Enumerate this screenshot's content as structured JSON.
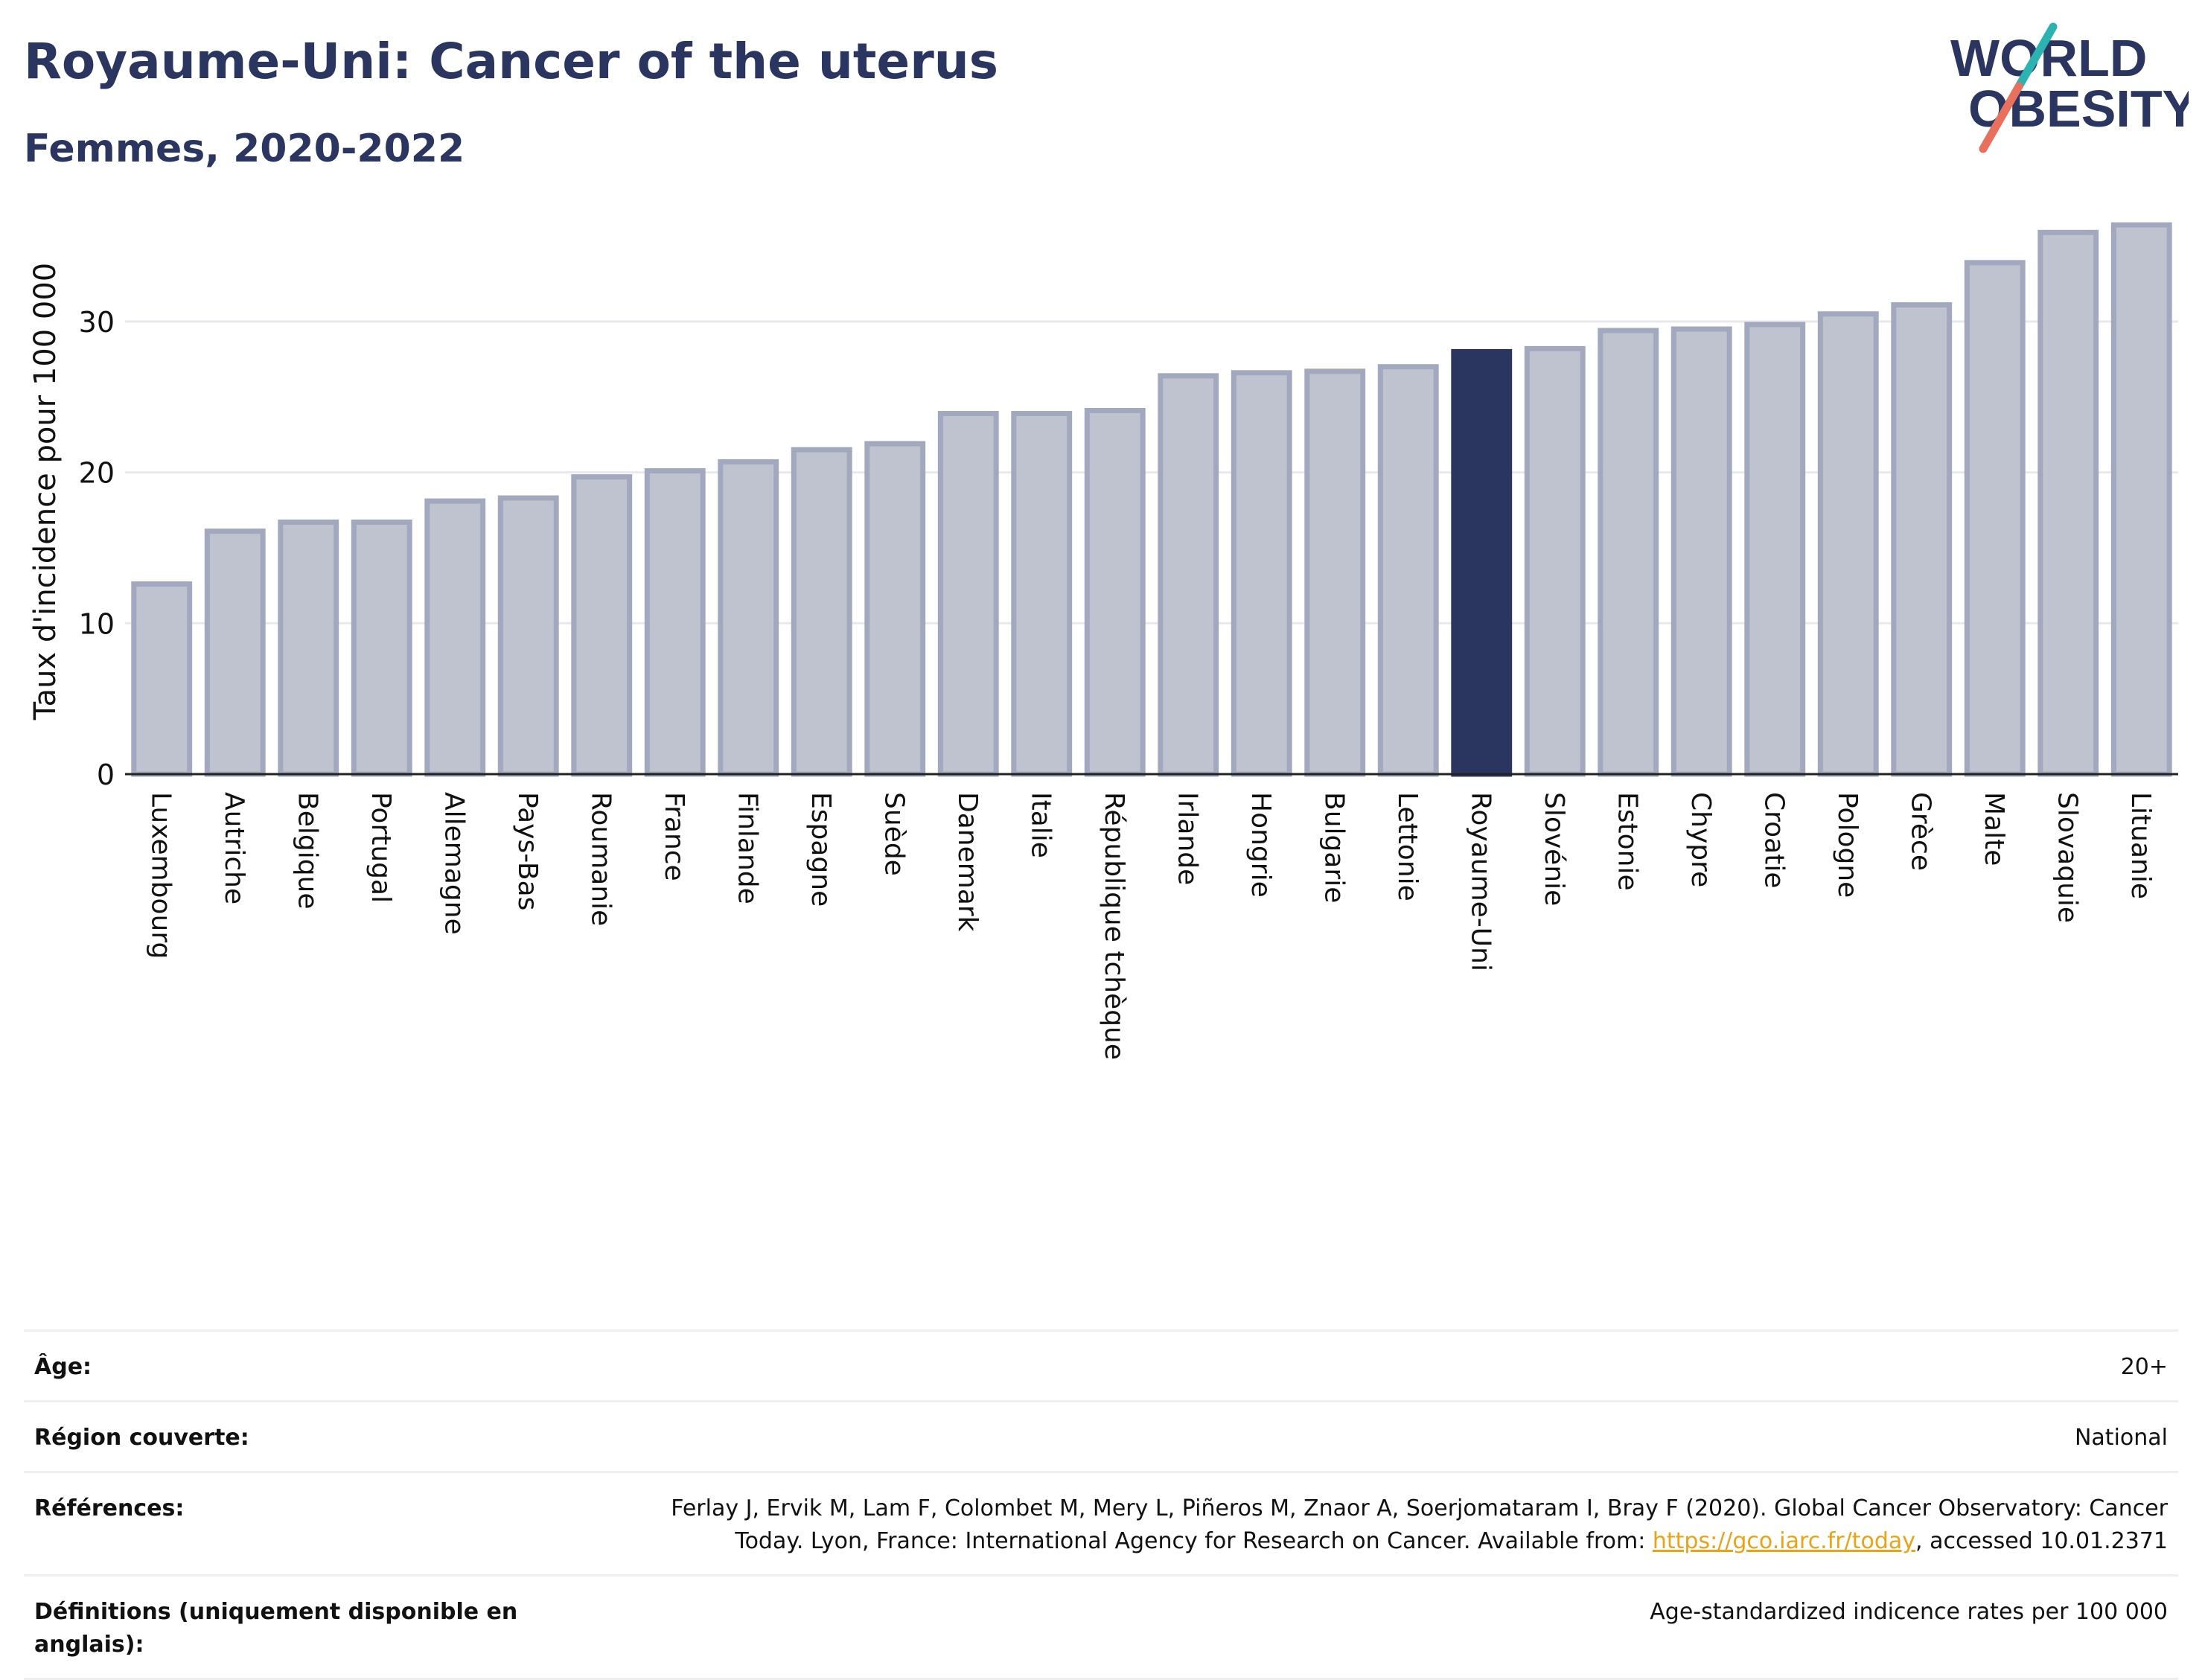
{
  "header": {
    "title": "Royaume-Uni: Cancer of the uterus",
    "subtitle": "Femmes, 2020-2022"
  },
  "logo": {
    "line1": "WORLD",
    "line2": "OBESITY",
    "accent_colors": [
      "#2bb3b1",
      "#e8705d"
    ]
  },
  "chart_data": {
    "type": "bar",
    "ylabel": "Taux d'incidence pour 100 000",
    "ylim": [
      0,
      37
    ],
    "yticks": [
      0,
      10,
      20,
      30
    ],
    "grid": true,
    "highlight": "Royaume-Uni",
    "colors": {
      "bar": "#bfc3d0",
      "bar_border": "#a2a8bd",
      "highlight": "#2a3560"
    },
    "categories": [
      "Luxembourg",
      "Autriche",
      "Belgique",
      "Portugal",
      "Allemagne",
      "Pays-Bas",
      "Roumanie",
      "France",
      "Finlande",
      "Espagne",
      "Suède",
      "Danemark",
      "Italie",
      "République tchèque",
      "Irlande",
      "Hongrie",
      "Bulgarie",
      "Lettonie",
      "Royaume-Uni",
      "Slovénie",
      "Estonie",
      "Chypre",
      "Croatie",
      "Pologne",
      "Grèce",
      "Malte",
      "Slovaquie",
      "Lituanie"
    ],
    "values": [
      12.6,
      16.1,
      16.7,
      16.7,
      18.1,
      18.3,
      19.7,
      20.1,
      20.7,
      21.5,
      21.9,
      23.9,
      23.9,
      24.1,
      26.4,
      26.6,
      26.7,
      27.0,
      28.0,
      28.2,
      29.4,
      29.5,
      29.8,
      30.5,
      31.1,
      33.9,
      35.9,
      36.4
    ]
  },
  "meta": {
    "rows": [
      {
        "label": "Âge:",
        "value": "20+"
      },
      {
        "label": "Région couverte:",
        "value": "National"
      },
      {
        "label": "Références:",
        "value_before": "Ferlay J, Ervik M, Lam F, Colombet M, Mery L, Piñeros M, Znaor A, Soerjomataram I, Bray F (2020). Global Cancer Observatory: Cancer Today. Lyon, France: International Agency for Research on Cancer. Available from: ",
        "link": "https://gco.iarc.fr/today",
        "value_after": ", accessed 10.01.2371"
      },
      {
        "label": "Définitions (uniquement disponible en anglais):",
        "value": "Age-standardized indicence rates per 100 000"
      }
    ]
  }
}
